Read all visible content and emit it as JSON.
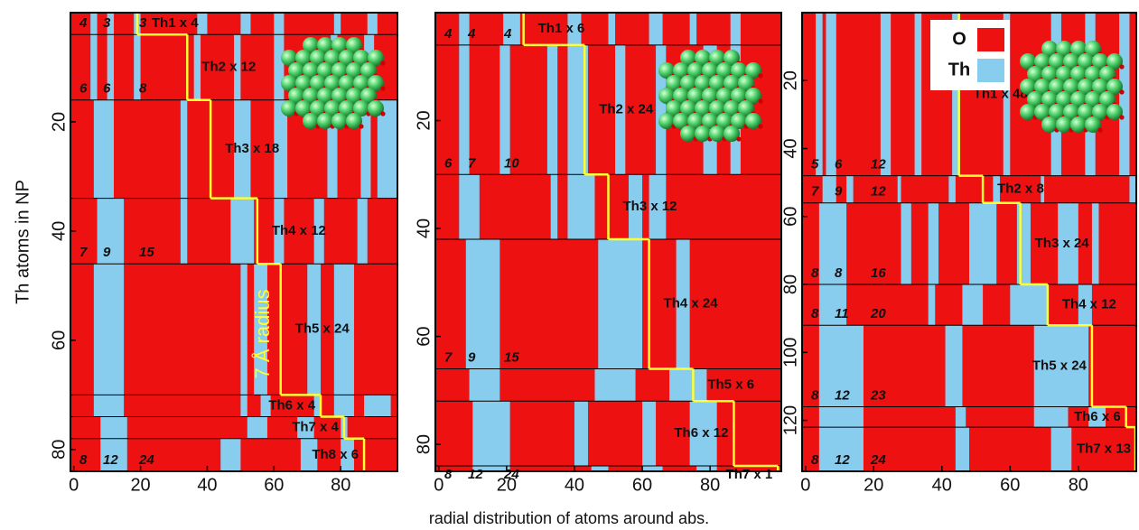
{
  "chart_data": [
    {
      "type": "strip",
      "ylabel": "Th atoms in NP",
      "annotation": "7 Å radius",
      "xlim": [
        -1,
        97
      ],
      "ylim": [
        0,
        84
      ],
      "xticks": [
        0,
        20,
        40,
        60,
        80
      ],
      "yticks": [
        20,
        40,
        60,
        80
      ],
      "radius_color": "#ffff33",
      "shells": [
        {
          "label": "Th1 x 4",
          "n": 4,
          "radius": 19,
          "cn": [
            4,
            3,
            3
          ],
          "bands": [
            [
              5,
              7
            ],
            [
              10,
              12
            ],
            [
              18,
              20
            ],
            [
              37,
              40
            ],
            [
              50,
              53
            ],
            [
              60,
              63
            ],
            [
              78,
              80
            ],
            [
              88,
              91
            ]
          ]
        },
        {
          "label": "Th2 x 12",
          "n": 12,
          "radius": 34,
          "cn": [
            6,
            6,
            8
          ],
          "bands": [
            [
              5,
              7
            ],
            [
              10,
              12
            ],
            [
              18,
              20
            ],
            [
              36,
              38
            ],
            [
              48,
              50
            ],
            [
              60,
              63
            ],
            [
              77,
              79
            ],
            [
              87,
              90
            ]
          ]
        },
        {
          "label": "Th3 x 18",
          "n": 18,
          "radius": 41,
          "bands": [
            [
              6,
              12
            ],
            [
              32,
              34
            ],
            [
              48,
              53
            ],
            [
              60,
              64
            ],
            [
              76,
              79
            ],
            [
              86,
              89
            ],
            [
              91,
              97
            ]
          ]
        },
        {
          "label": "Th4 x 12",
          "n": 12,
          "radius": 55,
          "cn": [
            7,
            9,
            15
          ],
          "bands": [
            [
              7,
              15
            ],
            [
              32,
              34
            ],
            [
              47,
              54
            ],
            [
              60,
              63
            ],
            [
              72,
              75
            ],
            [
              85,
              88
            ]
          ]
        },
        {
          "label": "Th5 x 24",
          "n": 24,
          "radius": 62,
          "bands": [
            [
              6,
              15
            ],
            [
              50,
              52
            ],
            [
              54,
              58
            ],
            [
              70,
              74
            ],
            [
              78,
              84
            ]
          ]
        },
        {
          "label": "Th6 x 4",
          "n": 4,
          "radius": 74,
          "bands": [
            [
              6,
              15
            ],
            [
              50,
              52
            ],
            [
              56,
              59
            ],
            [
              72,
              74
            ],
            [
              78,
              84
            ],
            [
              87,
              95
            ]
          ]
        },
        {
          "label": "Th7 x 4",
          "n": 4,
          "radius": 81,
          "bands": [
            [
              8,
              16
            ],
            [
              52,
              58
            ],
            [
              67,
              72
            ],
            [
              80,
              82
            ]
          ]
        },
        {
          "label": "Th8 x 6",
          "n": 6,
          "radius": 87,
          "cn": [
            8,
            12,
            24
          ],
          "bands": [
            [
              8,
              16
            ],
            [
              44,
              50
            ],
            [
              68,
              73
            ],
            [
              80,
              84
            ]
          ]
        }
      ]
    },
    {
      "type": "strip",
      "xlabel": "radial distribution of atoms around abs.",
      "xlim": [
        -1,
        101
      ],
      "ylim": [
        0,
        85
      ],
      "xticks": [
        0,
        20,
        40,
        60,
        80
      ],
      "yticks": [
        20,
        40,
        60,
        80
      ],
      "radius_color": "#ffff33",
      "shells": [
        {
          "label": "Th1 x 6",
          "n": 6,
          "radius": 25,
          "cn": [
            4,
            4,
            4
          ],
          "bands": [
            [
              6,
              9
            ],
            [
              19,
              24
            ],
            [
              38,
              42
            ],
            [
              50,
              52
            ],
            [
              62,
              66
            ],
            [
              74,
              76
            ],
            [
              86,
              89
            ]
          ]
        },
        {
          "label": "Th2 x 24",
          "n": 24,
          "radius": 43,
          "cn": [
            6,
            7,
            10
          ],
          "bands": [
            [
              6,
              9
            ],
            [
              18,
              21
            ],
            [
              32,
              35
            ],
            [
              38,
              44
            ],
            [
              52,
              55
            ],
            [
              64,
              67
            ],
            [
              78,
              82
            ],
            [
              86,
              89
            ]
          ]
        },
        {
          "label": "Th3 x 12",
          "n": 12,
          "radius": 50,
          "bands": [
            [
              6,
              12
            ],
            [
              33,
              35
            ],
            [
              38,
              46
            ],
            [
              56,
              60
            ],
            [
              62,
              67
            ]
          ]
        },
        {
          "label": "Th4 x 24",
          "n": 24,
          "radius": 62,
          "cn": [
            7,
            9,
            15
          ],
          "bands": [
            [
              8,
              18
            ],
            [
              47,
              60
            ],
            [
              70,
              74
            ]
          ]
        },
        {
          "label": "Th5 x 6",
          "n": 6,
          "radius": 75,
          "bands": [
            [
              9,
              18
            ],
            [
              46,
              58
            ],
            [
              68,
              79
            ]
          ]
        },
        {
          "label": "Th6 x 12",
          "n": 12,
          "radius": 87,
          "bands": [
            [
              10,
              21
            ],
            [
              40,
              44
            ],
            [
              60,
              64
            ],
            [
              74,
              82
            ]
          ]
        },
        {
          "label": "Th7 x 1",
          "n": 1,
          "radius": 100,
          "cn": [
            8,
            12,
            24
          ],
          "bands": [
            [
              10,
              21
            ],
            [
              45,
              50
            ],
            [
              60,
              66
            ],
            [
              76,
              82
            ]
          ]
        }
      ]
    },
    {
      "type": "strip",
      "xlim": [
        -1,
        97
      ],
      "ylim": [
        0,
        135
      ],
      "xticks": [
        0,
        20,
        40,
        60,
        80
      ],
      "yticks": [
        20,
        40,
        60,
        80,
        100,
        120
      ],
      "radius_color": "#ffff33",
      "legend": [
        {
          "name": "O",
          "color": "#ee1111"
        },
        {
          "name": "Th",
          "color": "#88ccee"
        }
      ],
      "shells": [
        {
          "label": "Th1 x 48",
          "n": 48,
          "radius": 45,
          "cn": [
            5,
            6,
            12
          ],
          "bands": [
            [
              3,
              5
            ],
            [
              6,
              9
            ],
            [
              22,
              25
            ],
            [
              32,
              34
            ],
            [
              43,
              45
            ],
            [
              58,
              60
            ],
            [
              72,
              75
            ],
            [
              82,
              85
            ],
            [
              92,
              95
            ]
          ]
        },
        {
          "label": "Th2 x 8",
          "n": 8,
          "radius": 52,
          "cn": [
            7,
            9,
            12
          ],
          "bands": [
            [
              5,
              9
            ],
            [
              12,
              14
            ],
            [
              27,
              28
            ],
            [
              42,
              44
            ],
            [
              55,
              57
            ],
            [
              69,
              70
            ],
            [
              95,
              97
            ]
          ]
        },
        {
          "label": "Th3 x 24",
          "n": 24,
          "radius": 63,
          "cn": [
            8,
            8,
            16
          ],
          "bands": [
            [
              4,
              12
            ],
            [
              28,
              31
            ],
            [
              36,
              39
            ],
            [
              48,
              56
            ],
            [
              62,
              66
            ],
            [
              74,
              80
            ],
            [
              84,
              86
            ]
          ]
        },
        {
          "label": "Th4 x 12",
          "n": 12,
          "radius": 71,
          "cn": [
            8,
            11,
            20
          ],
          "bands": [
            [
              4,
              12
            ],
            [
              36,
              38
            ],
            [
              46,
              52
            ],
            [
              60,
              71
            ],
            [
              80,
              84
            ]
          ]
        },
        {
          "label": "Th5 x 24",
          "n": 24,
          "radius": 84,
          "cn": [
            8,
            12,
            23
          ],
          "bands": [
            [
              4,
              17
            ],
            [
              41,
              46
            ],
            [
              67,
              83
            ]
          ]
        },
        {
          "label": "Th6 x 6",
          "n": 6,
          "radius": 94,
          "bands": [
            [
              4,
              17
            ],
            [
              44,
              47
            ],
            [
              67,
              77
            ],
            [
              83,
              88
            ]
          ]
        },
        {
          "label": "Th7 x 13",
          "n": 13,
          "radius": 97,
          "cn": [
            8,
            12,
            24
          ],
          "bands": [
            [
              4,
              17
            ],
            [
              44,
              48
            ],
            [
              72,
              78
            ]
          ]
        }
      ]
    }
  ]
}
